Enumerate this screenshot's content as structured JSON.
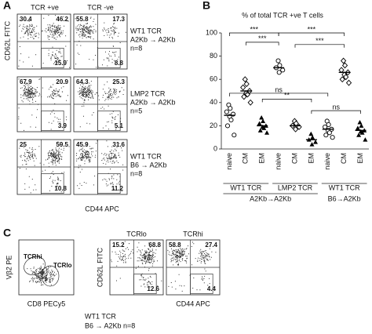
{
  "panel_a": {
    "letter": "A",
    "col_headers": [
      "TCR +ve",
      "TCR -ve"
    ],
    "y_label": "CD62L FITC",
    "x_label": "CD44 APC",
    "rows": [
      {
        "lines": [
          "WT1 TCR",
          "A2Kb → A2Kb",
          "n=8"
        ],
        "plots": [
          [
            "30.4",
            "46.2",
            "15.9"
          ],
          [
            "55.8",
            "17.3",
            "8.8"
          ]
        ]
      },
      {
        "lines": [
          "LMP2 TCR",
          "A2Kb → A2Kb",
          "n=5"
        ],
        "plots": [
          [
            "67.9",
            "20.9",
            "3.9"
          ],
          [
            "64.3",
            "25.3",
            "5.1"
          ]
        ]
      },
      {
        "lines": [
          "WT1 TCR",
          "B6 → A2Kb",
          "n=8"
        ],
        "plots": [
          [
            "25",
            "59.5",
            "10.8"
          ],
          [
            "45.9",
            "31.6",
            "11.2"
          ]
        ]
      }
    ]
  },
  "panel_b": {
    "letter": "B",
    "title": "% of total TCR +ve T cells",
    "ylim": [
      0,
      100
    ],
    "yticks": [
      0,
      20,
      40,
      60,
      80,
      100
    ],
    "categories": [
      "naive",
      "CM",
      "EM",
      "naive",
      "CM",
      "EM",
      "naive",
      "CM",
      "EM"
    ],
    "points": [
      [
        38,
        35,
        32,
        30,
        28,
        25,
        20,
        12
      ],
      [
        60,
        56,
        53,
        50,
        48,
        47,
        45,
        40
      ],
      [
        27,
        24,
        22,
        20,
        19,
        18,
        16,
        14
      ],
      [
        76,
        72,
        70,
        68,
        66
      ],
      [
        24,
        22,
        20,
        19,
        17
      ],
      [
        13,
        10,
        8,
        6,
        4
      ],
      [
        24,
        21,
        19,
        17,
        16,
        14,
        12,
        10
      ],
      [
        76,
        72,
        68,
        66,
        64,
        62,
        60,
        57
      ],
      [
        23,
        20,
        18,
        16,
        15,
        14,
        12,
        8
      ]
    ],
    "means": [
      29,
      50,
      20,
      70,
      20,
      8,
      17,
      66,
      16
    ],
    "group_labels": [
      "WT1 TCR",
      "LMP2 TCR",
      "WT1 TCR"
    ],
    "host_labels": [
      "A2Kb→A2Kb",
      "B6→A2Kb"
    ],
    "annotations": [
      "***",
      "***",
      "***",
      "***",
      "**",
      "ns",
      "ns"
    ]
  },
  "panel_c": {
    "letter": "C",
    "gate_plot": {
      "y_label": "Vβ2 PE",
      "x_label": "CD8 PECy5",
      "gates": [
        "TCRhi",
        "TCRlo"
      ]
    },
    "y_label": "CD62L FITC",
    "x_label": "CD44 APC",
    "plots": [
      {
        "header": "TCRlo",
        "values": [
          "15.2",
          "68.8",
          "12.6"
        ]
      },
      {
        "header": "TCRhi",
        "values": [
          "58.8",
          "27.4",
          "4.4"
        ]
      }
    ],
    "footer": [
      "WT1 TCR",
      "B6 → A2Kb n=8"
    ]
  }
}
